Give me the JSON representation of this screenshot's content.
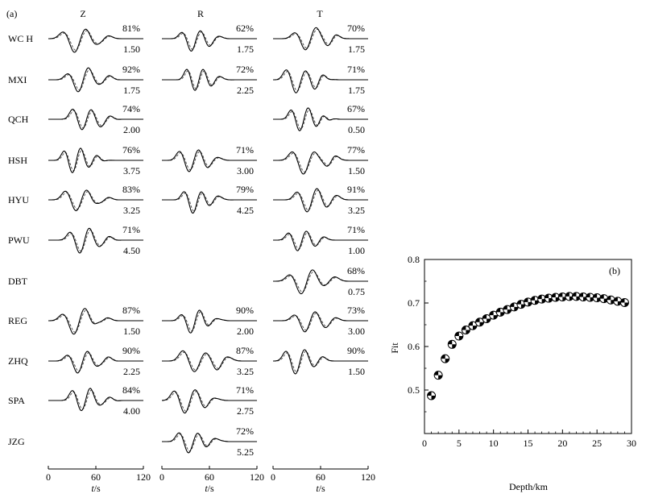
{
  "panel_a": {
    "panel_label": "(a)",
    "components": [
      "Z",
      "R",
      "T"
    ],
    "stations": [
      "WC H",
      "MXI",
      "QCH",
      "HSH",
      "HYU",
      "PWU",
      "DBT",
      "REG",
      "ZHQ",
      "SPA",
      "JZG"
    ],
    "waveform_fits": {
      "Z": [
        {
          "station": "WC H",
          "fit": "81%",
          "shift": "1.50"
        },
        {
          "station": "MXI",
          "fit": "92%",
          "shift": "1.75"
        },
        {
          "station": "QCH",
          "fit": "74%",
          "shift": "2.00"
        },
        {
          "station": "HSH",
          "fit": "76%",
          "shift": "3.75"
        },
        {
          "station": "HYU",
          "fit": "83%",
          "shift": "3.25"
        },
        {
          "station": "PWU",
          "fit": "71%",
          "shift": "4.50"
        },
        null,
        {
          "station": "REG",
          "fit": "87%",
          "shift": "1.50"
        },
        {
          "station": "ZHQ",
          "fit": "90%",
          "shift": "2.25"
        },
        {
          "station": "SPA",
          "fit": "84%",
          "shift": "4.00"
        },
        null
      ],
      "R": [
        {
          "station": "WC H",
          "fit": "62%",
          "shift": "1.75"
        },
        {
          "station": "MXI",
          "fit": "72%",
          "shift": "2.25"
        },
        null,
        {
          "station": "HSH",
          "fit": "71%",
          "shift": "3.00"
        },
        {
          "station": "HYU",
          "fit": "79%",
          "shift": "4.25"
        },
        null,
        null,
        {
          "station": "REG",
          "fit": "90%",
          "shift": "2.00"
        },
        {
          "station": "ZHQ",
          "fit": "87%",
          "shift": "3.25"
        },
        {
          "station": "SPA",
          "fit": "71%",
          "shift": "2.75"
        },
        {
          "station": "JZG",
          "fit": "72%",
          "shift": "5.25"
        }
      ],
      "T": [
        {
          "station": "WC H",
          "fit": "70%",
          "shift": "1.75"
        },
        {
          "station": "MXI",
          "fit": "71%",
          "shift": "1.75"
        },
        {
          "station": "QCH",
          "fit": "67%",
          "shift": "0.50"
        },
        {
          "station": "HSH",
          "fit": "77%",
          "shift": "1.50"
        },
        {
          "station": "HYU",
          "fit": "91%",
          "shift": "3.25"
        },
        {
          "station": "PWU",
          "fit": "71%",
          "shift": "1.00"
        },
        {
          "station": "DBT",
          "fit": "68%",
          "shift": "0.75"
        },
        {
          "station": "REG",
          "fit": "73%",
          "shift": "3.00"
        },
        {
          "station": "ZHQ",
          "fit": "90%",
          "shift": "1.50"
        },
        null,
        null
      ]
    },
    "time_axis": {
      "ticks": [
        "0",
        "60",
        "120"
      ],
      "label_italic": "t",
      "label_unit": "/s"
    }
  },
  "chart_data": {
    "type": "scatter",
    "panel_label": "(b)",
    "xlabel": "Depth/km",
    "ylabel": "Fit",
    "xlim": [
      0,
      30
    ],
    "ylim": [
      0.4,
      0.8
    ],
    "xticks": [
      "0",
      "5",
      "10",
      "15",
      "20",
      "25",
      "30"
    ],
    "yticks": [
      "0.5",
      "0.6",
      "0.7",
      "0.8"
    ],
    "grid": false,
    "x": [
      1,
      2,
      3,
      4,
      5,
      6,
      7,
      8,
      9,
      10,
      11,
      12,
      13,
      14,
      15,
      16,
      17,
      18,
      19,
      20,
      21,
      22,
      23,
      24,
      25,
      26,
      27,
      28,
      29
    ],
    "y": [
      0.487,
      0.534,
      0.572,
      0.605,
      0.624,
      0.638,
      0.648,
      0.656,
      0.664,
      0.672,
      0.679,
      0.685,
      0.691,
      0.697,
      0.702,
      0.706,
      0.709,
      0.711,
      0.713,
      0.714,
      0.715,
      0.715,
      0.714,
      0.713,
      0.712,
      0.71,
      0.707,
      0.704,
      0.701
    ]
  }
}
